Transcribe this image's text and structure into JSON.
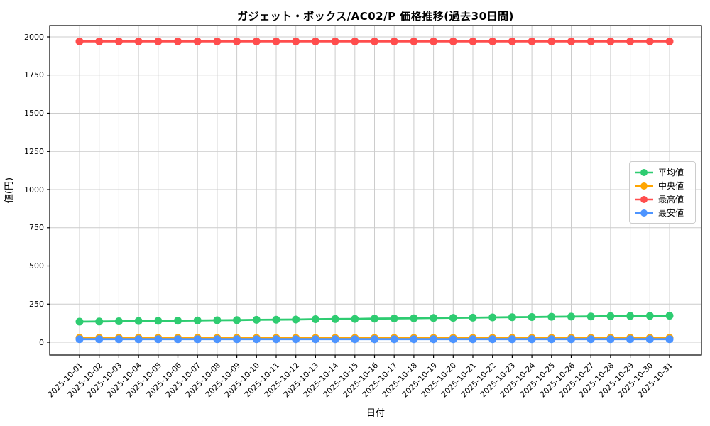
{
  "chart_data": {
    "type": "line",
    "title": "ガジェット・ボックス/AC02/P 価格推移(過去30日間)",
    "xlabel": "日付",
    "ylabel": "値(円)",
    "x": [
      "2025-10-01",
      "2025-10-02",
      "2025-10-03",
      "2025-10-04",
      "2025-10-05",
      "2025-10-06",
      "2025-10-07",
      "2025-10-08",
      "2025-10-09",
      "2025-10-10",
      "2025-10-11",
      "2025-10-12",
      "2025-10-13",
      "2025-10-14",
      "2025-10-15",
      "2025-10-16",
      "2025-10-17",
      "2025-10-18",
      "2025-10-19",
      "2025-10-20",
      "2025-10-21",
      "2025-10-22",
      "2025-10-23",
      "2025-10-24",
      "2025-10-25",
      "2025-10-26",
      "2025-10-27",
      "2025-10-28",
      "2025-10-29",
      "2025-10-30",
      "2025-10-31"
    ],
    "series": [
      {
        "name": "平均値",
        "color": "#2ecc71",
        "values": [
          135,
          136,
          137,
          139,
          140,
          141,
          143,
          144,
          145,
          147,
          148,
          149,
          151,
          152,
          153,
          155,
          156,
          157,
          159,
          160,
          161,
          163,
          164,
          165,
          167,
          168,
          169,
          171,
          172,
          173,
          174
        ]
      },
      {
        "name": "中央値",
        "color": "#ffa500",
        "values": [
          28,
          28,
          28,
          28,
          28,
          28,
          28,
          28,
          28,
          28,
          28,
          28,
          28,
          28,
          28,
          28,
          28,
          28,
          28,
          28,
          28,
          28,
          28,
          28,
          28,
          28,
          28,
          28,
          28,
          28,
          28
        ]
      },
      {
        "name": "最高値",
        "color": "#ff4d4d",
        "values": [
          1970,
          1970,
          1970,
          1970,
          1970,
          1970,
          1970,
          1970,
          1970,
          1970,
          1970,
          1970,
          1970,
          1970,
          1970,
          1970,
          1970,
          1970,
          1970,
          1970,
          1970,
          1970,
          1970,
          1970,
          1970,
          1970,
          1970,
          1970,
          1970,
          1970,
          1970
        ]
      },
      {
        "name": "最安値",
        "color": "#4d94ff",
        "values": [
          20,
          20,
          20,
          20,
          20,
          20,
          20,
          20,
          20,
          20,
          20,
          20,
          20,
          20,
          20,
          20,
          20,
          20,
          20,
          20,
          20,
          20,
          20,
          20,
          20,
          20,
          20,
          20,
          20,
          20,
          20
        ]
      }
    ],
    "yticks": [
      0,
      250,
      500,
      750,
      1000,
      1250,
      1500,
      1750,
      2000
    ],
    "ylim": [
      -84,
      2074
    ],
    "grid": true,
    "grid_color": "#cccccc",
    "spine_color": "#000000",
    "legend_position": "upper right",
    "marker": "circle"
  }
}
